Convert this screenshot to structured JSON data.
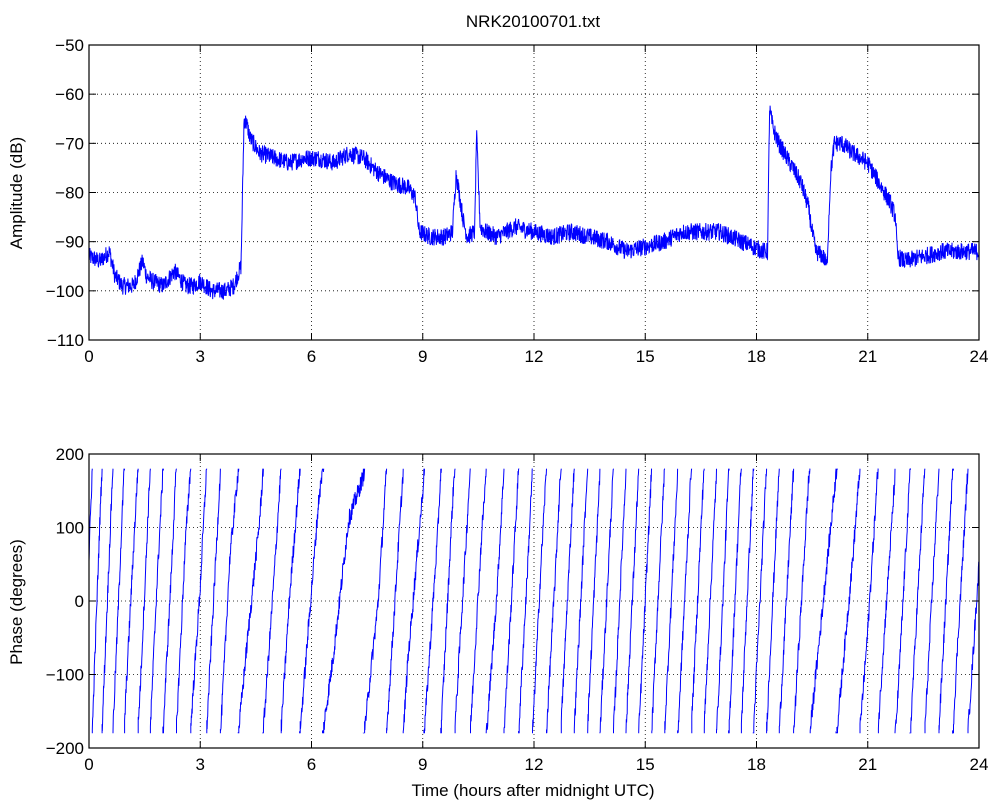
{
  "figure": {
    "colors": {
      "line": "#0000ff",
      "axes": "#000000",
      "grid": "#000000",
      "background": "#ffffff"
    }
  },
  "chart_data": [
    {
      "type": "line",
      "title": "NRK20100701.txt",
      "xlabel": "",
      "ylabel": "Amplitude (dB)",
      "xlim": [
        0,
        24
      ],
      "ylim": [
        -110,
        -50
      ],
      "xticks": [
        "0",
        "3",
        "6",
        "9",
        "12",
        "15",
        "18",
        "21",
        "24"
      ],
      "yticks": [
        "−110",
        "−100",
        "−90",
        "−80",
        "−70",
        "−60",
        "−50"
      ],
      "grid": true,
      "series": [
        {
          "noise": 1.8,
          "x": [
            0,
            0.3,
            0.55,
            0.7,
            0.9,
            1.2,
            1.35,
            1.45,
            1.55,
            1.7,
            2.0,
            2.3,
            2.6,
            2.8,
            3.0,
            3.3,
            3.7,
            3.9,
            4.0,
            4.1,
            4.18,
            4.25,
            4.35,
            4.6,
            5.0,
            5.4,
            5.8,
            6.2,
            6.6,
            7.0,
            7.4,
            7.8,
            8.2,
            8.6,
            8.8,
            8.9,
            9.2,
            9.6,
            9.8,
            9.9,
            10.0,
            10.1,
            10.2,
            10.4,
            10.45,
            10.55,
            10.7,
            11.0,
            11.5,
            12.0,
            12.5,
            13.0,
            13.5,
            14.0,
            14.5,
            15.0,
            15.5,
            16.0,
            16.5,
            17.0,
            17.3,
            17.6,
            17.9,
            18.2,
            18.3,
            18.35,
            18.45,
            18.6,
            18.9,
            19.2,
            19.4,
            19.5,
            19.6,
            19.8,
            19.9,
            20.0,
            20.1,
            20.3,
            20.6,
            21.0,
            21.3,
            21.6,
            21.75,
            21.8,
            22.0,
            22.5,
            23.0,
            23.5,
            24.0
          ],
          "y": [
            -93,
            -94,
            -92,
            -97,
            -99,
            -99,
            -96,
            -94,
            -97,
            -98,
            -99,
            -96,
            -99,
            -99,
            -98,
            -100,
            -100,
            -99,
            -97,
            -95,
            -65,
            -66,
            -69,
            -72,
            -73,
            -74,
            -73,
            -73,
            -74,
            -72,
            -73,
            -76,
            -78,
            -79,
            -81,
            -88,
            -89,
            -89,
            -88,
            -76,
            -81,
            -86,
            -89,
            -88,
            -68,
            -87,
            -88,
            -89,
            -87,
            -88,
            -89,
            -88,
            -89,
            -90,
            -92,
            -91,
            -90,
            -88,
            -88,
            -88,
            -89,
            -90,
            -91,
            -92,
            -92,
            -63,
            -67,
            -70,
            -74,
            -78,
            -83,
            -88,
            -92,
            -93,
            -95,
            -76,
            -70,
            -70,
            -72,
            -74,
            -78,
            -82,
            -85,
            -93,
            -94,
            -93,
            -92,
            -92,
            -92
          ]
        }
      ]
    },
    {
      "type": "line",
      "title": "",
      "xlabel": "Time (hours after midnight UTC)",
      "ylabel": "Phase (degrees)",
      "xlim": [
        0,
        24
      ],
      "ylim": [
        -200,
        200
      ],
      "xticks": [
        "0",
        "3",
        "6",
        "9",
        "12",
        "15",
        "18",
        "21",
        "24"
      ],
      "yticks": [
        "−200",
        "−100",
        "0",
        "100",
        "200"
      ],
      "grid": true,
      "series": [
        {
          "noise": 12,
          "wrap": true,
          "x": [
            0,
            0.3,
            0.6,
            1.0,
            1.4,
            1.8,
            2.2,
            2.6,
            3.0,
            3.4,
            3.8,
            4.2,
            4.6,
            5.0,
            5.4,
            5.8,
            6.2,
            6.6,
            7.0,
            7.4,
            7.8,
            8.2,
            8.6,
            9.0,
            9.4,
            9.8,
            10.2,
            10.6,
            11.0,
            11.4,
            11.8,
            12.2,
            12.6,
            13.0,
            13.4,
            13.8,
            14.2,
            14.6,
            15.0,
            15.4,
            15.8,
            16.2,
            16.6,
            17.0,
            17.4,
            17.8,
            18.2,
            18.6,
            19.0,
            19.4,
            19.8,
            20.2,
            20.6,
            21.0,
            21.4,
            21.8,
            22.2,
            22.6,
            23.0,
            23.4,
            23.7,
            24.0
          ],
          "y": [
            60,
            480,
            850,
            1320,
            1700,
            2150,
            2540,
            2960,
            3260,
            3640,
            4020,
            4230,
            4430,
            4720,
            5040,
            5290,
            5540,
            5690,
            5870,
            5930,
            6120,
            6440,
            6760,
            6990,
            7290,
            7690,
            8030,
            8380,
            8650,
            9010,
            9380,
            9780,
            10140,
            10540,
            10940,
            11360,
            11760,
            12190,
            12600,
            13020,
            13420,
            13820,
            14240,
            14660,
            15100,
            15540,
            15950,
            16370,
            16740,
            17080,
            17280,
            17480,
            17700,
            17960,
            18280,
            18580,
            18950,
            19320,
            19700,
            20080,
            20340,
            20570
          ]
        }
      ]
    }
  ]
}
